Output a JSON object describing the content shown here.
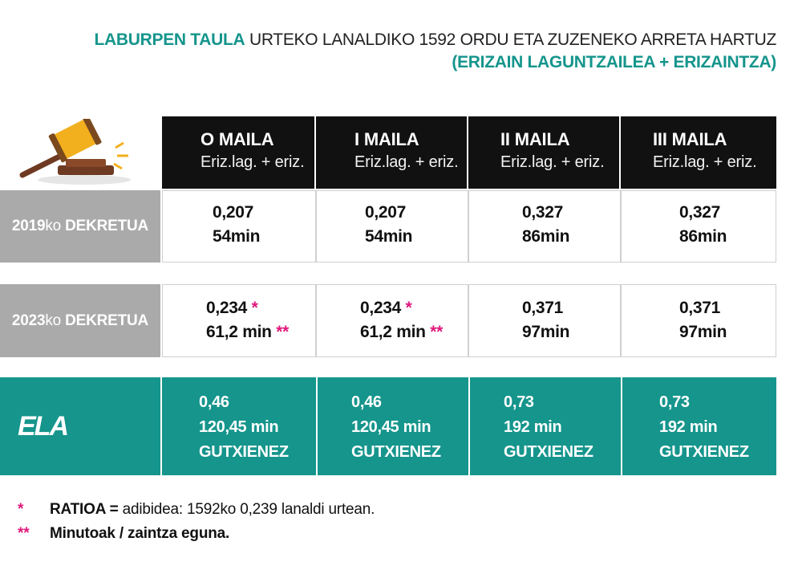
{
  "title": {
    "highlight": "LABURPEN TAULA",
    "rest": "URTEKO LANALDIKO 1592 ORDU ETA ZUZENEKO ARRETA HARTUZ",
    "subtitle": "(ERIZAIN LAGUNTZAILEA + ERIZAINTZA)"
  },
  "columns": [
    {
      "level": "O MAILA",
      "sub": "Eriz.lag. + eriz."
    },
    {
      "level": "I MAILA",
      "sub": "Eriz.lag. + eriz."
    },
    {
      "level": "II MAILA",
      "sub": "Eriz.lag. + eriz."
    },
    {
      "level": "III MAILA",
      "sub": "Eriz.lag. + eriz."
    }
  ],
  "rows": {
    "r2019": {
      "year": "2019",
      "ko": "ko",
      "name": "DEKRETUA",
      "cells": [
        {
          "ratio": "0,207",
          "minutes": "54min"
        },
        {
          "ratio": "0,207",
          "minutes": "54min"
        },
        {
          "ratio": "0,327",
          "minutes": "86min"
        },
        {
          "ratio": "0,327",
          "minutes": "86min"
        }
      ]
    },
    "r2023": {
      "year": "2023",
      "ko": "ko",
      "name": "DEKRETUA",
      "cells": [
        {
          "ratio": "0,234",
          "ratio_mark": "*",
          "minutes": "61,2 min",
          "minutes_mark": "**"
        },
        {
          "ratio": "0,234",
          "ratio_mark": "*",
          "minutes": "61,2 min",
          "minutes_mark": "**"
        },
        {
          "ratio": "0,371",
          "minutes": "97min"
        },
        {
          "ratio": "0,371",
          "minutes": "97min"
        }
      ]
    },
    "ela": {
      "label": "ELA",
      "cells": [
        {
          "ratio": "0,46",
          "minutes": "120,45 min",
          "note": "GUTXIENEZ"
        },
        {
          "ratio": "0,46",
          "minutes": "120,45 min",
          "note": "GUTXIENEZ"
        },
        {
          "ratio": "0,73",
          "minutes": "192 min",
          "note": "GUTXIENEZ"
        },
        {
          "ratio": "0,73",
          "minutes": "192 min",
          "note": "GUTXIENEZ"
        }
      ]
    }
  },
  "footnotes": [
    {
      "mark": "*",
      "bold": "RATIOA =",
      "text": "adibidea: 1592ko 0,239 lanaldi urtean."
    },
    {
      "mark": "**",
      "bold": "Minutoak / zaintza eguna.",
      "text": ""
    }
  ],
  "colors": {
    "accent": "#15958c",
    "asterisk": "#e0197d",
    "label_gray": "#aaaaaa",
    "header_black": "#111111"
  }
}
